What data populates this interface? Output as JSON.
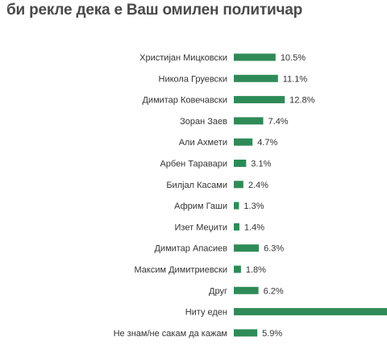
{
  "title": "би рекле дека е Ваш омилен политичар",
  "colors": {
    "bar": "#2e8b57",
    "text": "#333333",
    "title": "#4a4a4a"
  },
  "chart_data": {
    "type": "bar",
    "orientation": "horizontal",
    "categories": [
      "Христијан Мицковски",
      "Никола Груевски",
      "Димитар Ковечавски",
      "Зоран Заев",
      "Али Ахмети",
      "Арбен Таравари",
      "Билјал Касами",
      "Африм Гаши",
      "Изет Меџити",
      "Димитар Апасиев",
      "Максим Димитриевски",
      "Друг",
      "Ниту еден",
      "Не знам/не сакам да кажам"
    ],
    "values": [
      10.5,
      11.1,
      12.8,
      7.4,
      4.7,
      3.1,
      2.4,
      1.3,
      1.4,
      6.3,
      1.8,
      6.2,
      38.5,
      5.9
    ],
    "labels": [
      "10.5%",
      "11.1%",
      "12.8%",
      "7.4%",
      "4.7%",
      "3.1%",
      "2.4%",
      "1.3%",
      "1.4%",
      "6.3%",
      "1.8%",
      "6.2%",
      "",
      "5.9%"
    ],
    "xlim": [
      0,
      38.5
    ],
    "grid": false,
    "legend": "none"
  }
}
